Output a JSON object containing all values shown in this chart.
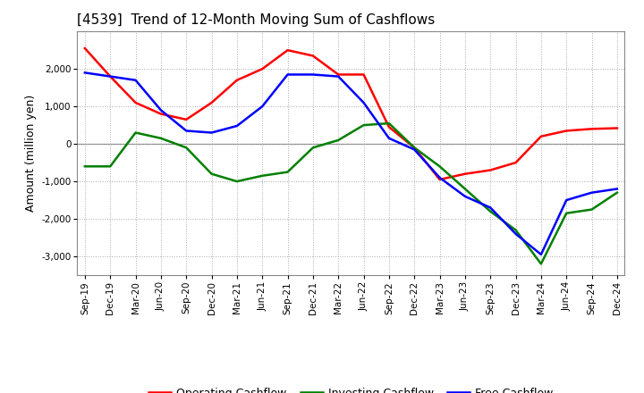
{
  "title": "[4539]  Trend of 12-Month Moving Sum of Cashflows",
  "ylabel": "Amount (million yen)",
  "x_labels": [
    "Sep-19",
    "Dec-19",
    "Mar-20",
    "Jun-20",
    "Sep-20",
    "Dec-20",
    "Mar-21",
    "Jun-21",
    "Sep-21",
    "Dec-21",
    "Mar-22",
    "Jun-22",
    "Sep-22",
    "Dec-22",
    "Mar-23",
    "Jun-23",
    "Sep-23",
    "Dec-23",
    "Mar-24",
    "Jun-24",
    "Sep-24",
    "Dec-24"
  ],
  "operating_cashflow": [
    2550,
    1800,
    1100,
    800,
    650,
    1100,
    1700,
    2000,
    2500,
    2350,
    1850,
    1850,
    450,
    -100,
    -950,
    -800,
    -700,
    -500,
    200,
    350,
    400,
    420
  ],
  "investing_cashflow": [
    -600,
    -600,
    300,
    150,
    -100,
    -800,
    -1000,
    -850,
    -750,
    -100,
    100,
    500,
    550,
    -100,
    -600,
    -1200,
    -1800,
    -2300,
    -3200,
    -1850,
    -1750,
    -1300
  ],
  "free_cashflow": [
    1900,
    1800,
    1700,
    900,
    350,
    300,
    480,
    1000,
    1850,
    1850,
    1800,
    1100,
    150,
    -150,
    -900,
    -1400,
    -1700,
    -2400,
    -2950,
    -1500,
    -1300,
    -1200
  ],
  "ylim": [
    -3500,
    3000
  ],
  "yticks": [
    -3000,
    -2000,
    -1000,
    0,
    1000,
    2000
  ],
  "background_color": "#ffffff",
  "plot_bg_color": "#ffffff",
  "grid_color": "#aaaaaa",
  "operating_color": "#ff0000",
  "investing_color": "#008000",
  "free_color": "#0000ff",
  "line_width": 1.8,
  "title_fontsize": 11,
  "legend_fontsize": 9,
  "tick_fontsize": 7.5
}
